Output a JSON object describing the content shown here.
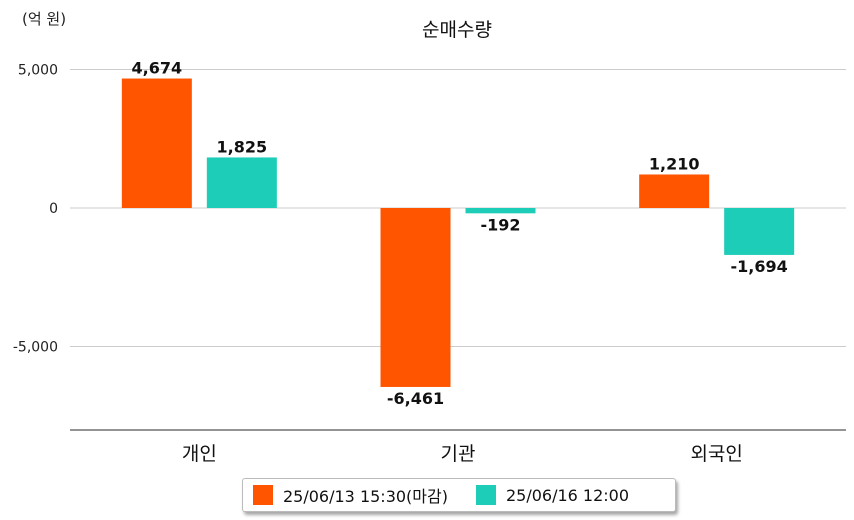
{
  "chart_data": {
    "type": "bar",
    "title": "순매수량",
    "unit_label": "(억 원)",
    "categories": [
      "개인",
      "기관",
      "외국인"
    ],
    "series": [
      {
        "name": "25/06/13 15:30(마감)",
        "color": "#ff5500",
        "values": [
          4674,
          -6461,
          1210
        ],
        "labels": [
          "4,674",
          "-6,461",
          "1,210"
        ]
      },
      {
        "name": "25/06/16 12:00",
        "color": "#1ecdb8",
        "values": [
          1825,
          -192,
          -1694
        ],
        "labels": [
          "1,825",
          "-192",
          "-1,694"
        ]
      }
    ],
    "yticks": [
      5000,
      0,
      -5000
    ],
    "ytick_labels": [
      "5,000",
      "0",
      "-5,000"
    ],
    "ylim": [
      -8000,
      5000
    ],
    "grid": true,
    "legend_position": "bottom"
  }
}
